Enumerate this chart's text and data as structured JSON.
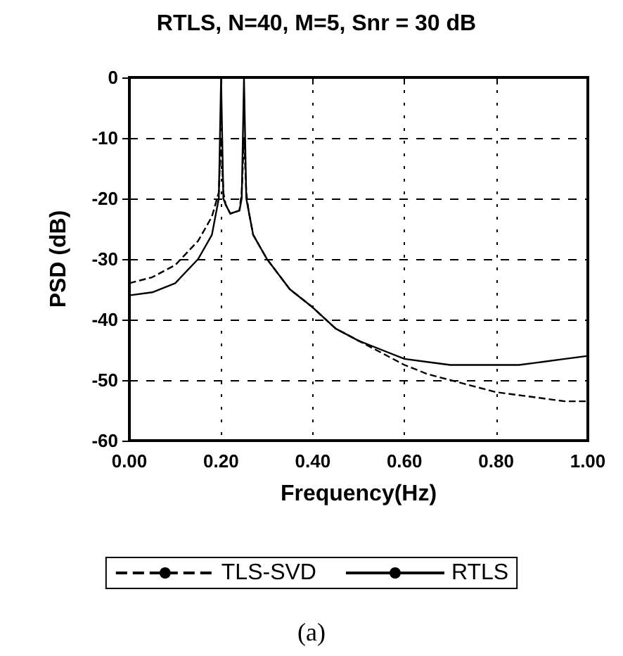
{
  "chart_data": {
    "type": "line",
    "title": "RTLS, N=40, M=5, Snr = 30 dB",
    "xlabel": "Frequency(Hz)",
    "ylabel": "PSD (dB)",
    "annotations": [
      "(a)"
    ],
    "series": [
      {
        "name": "TLS-SVD",
        "color": "#000000",
        "line_style": "dashed",
        "x": [
          0,
          0.05,
          0.1,
          0.15,
          0.18,
          0.195,
          0.2,
          0.205,
          0.21,
          0.22,
          0.24,
          0.245,
          0.25,
          0.255,
          0.26,
          0.27,
          0.3,
          0.35,
          0.4,
          0.45,
          0.5,
          0.55,
          0.6,
          0.65,
          0.7,
          0.75,
          0.8,
          0.85,
          0.9,
          0.95,
          1.0
        ],
        "values": [
          -34,
          -33,
          -31,
          -27,
          -23,
          -19,
          -10,
          -19,
          -21,
          -22.5,
          -22,
          -19,
          -10,
          -19,
          -22,
          -26,
          -30,
          -35,
          -38,
          -41.5,
          -43.5,
          -45.5,
          -47.5,
          -49,
          -50,
          -51,
          -52,
          -52.5,
          -53,
          -53.5,
          -53.5
        ]
      },
      {
        "name": "RTLS",
        "color": "#000000",
        "line_style": "solid",
        "x": [
          0,
          0.05,
          0.1,
          0.15,
          0.18,
          0.195,
          0.2,
          0.205,
          0.21,
          0.22,
          0.24,
          0.245,
          0.25,
          0.255,
          0.26,
          0.27,
          0.3,
          0.35,
          0.4,
          0.45,
          0.5,
          0.55,
          0.6,
          0.65,
          0.7,
          0.75,
          0.8,
          0.85,
          0.9,
          0.95,
          1.0
        ],
        "values": [
          -36,
          -35.5,
          -34,
          -30,
          -26,
          -20,
          0,
          -20,
          -21,
          -22.5,
          -22,
          -20,
          0,
          -20,
          -22,
          -26,
          -30,
          -35,
          -38,
          -41.5,
          -43.5,
          -45,
          -46.5,
          -47,
          -47.5,
          -47.5,
          -47.5,
          -47.5,
          -47,
          -46.5,
          -46
        ]
      }
    ],
    "xlim": [
      0,
      1
    ],
    "xticks": [
      {
        "value": 0,
        "label": "0.00"
      },
      {
        "value": 0.2,
        "label": "0.20"
      },
      {
        "value": 0.4,
        "label": "0.40"
      },
      {
        "value": 0.6,
        "label": "0.60"
      },
      {
        "value": 0.8,
        "label": "0.80"
      },
      {
        "value": 1,
        "label": "1.00"
      }
    ],
    "ylim": [
      -60,
      0
    ],
    "yticks": [
      -60,
      -50,
      -40,
      -30,
      -20,
      -10,
      0
    ],
    "grid": true,
    "legend": "bottom",
    "marker": "none"
  }
}
